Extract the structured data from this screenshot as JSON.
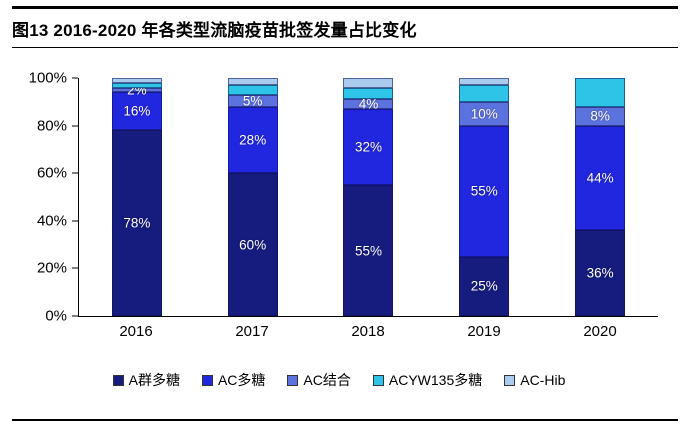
{
  "title": "图13 2016-2020 年各类型流脑疫苗批签发量占比变化",
  "chart_data": {
    "type": "bar",
    "stacked": true,
    "percent": true,
    "title": "图13 2016-2020 年各类型流脑疫苗批签发量占比变化",
    "categories": [
      "2016",
      "2017",
      "2018",
      "2019",
      "2020"
    ],
    "series": [
      {
        "name": "A群多糖",
        "color": "#161C7E",
        "values": [
          78,
          60,
          55,
          25,
          36
        ],
        "labels": [
          "78%",
          "60%",
          "55%",
          "25%",
          "36%"
        ]
      },
      {
        "name": "AC多糖",
        "color": "#2127DF",
        "values": [
          16,
          28,
          32,
          55,
          44
        ],
        "labels": [
          "16%",
          "28%",
          "32%",
          "55%",
          "44%"
        ]
      },
      {
        "name": "AC结合",
        "color": "#5C73DF",
        "values": [
          2,
          5,
          4,
          10,
          8
        ],
        "labels": [
          "2%",
          "5%",
          "4%",
          "10%",
          "8%"
        ]
      },
      {
        "name": "ACYW135多糖",
        "color": "#2EC4E8",
        "values": [
          2,
          4,
          5,
          7,
          12
        ],
        "labels": [
          "",
          "",
          "",
          "",
          ""
        ]
      },
      {
        "name": "AC-Hib",
        "color": "#A9CBEE",
        "values": [
          2,
          3,
          4,
          3,
          0
        ],
        "labels": [
          "",
          "",
          "",
          "",
          ""
        ]
      }
    ],
    "y_ticks": [
      "0%",
      "20%",
      "40%",
      "60%",
      "80%",
      "100%"
    ],
    "ylim": [
      0,
      100
    ],
    "grid": false,
    "legend_position": "bottom"
  }
}
